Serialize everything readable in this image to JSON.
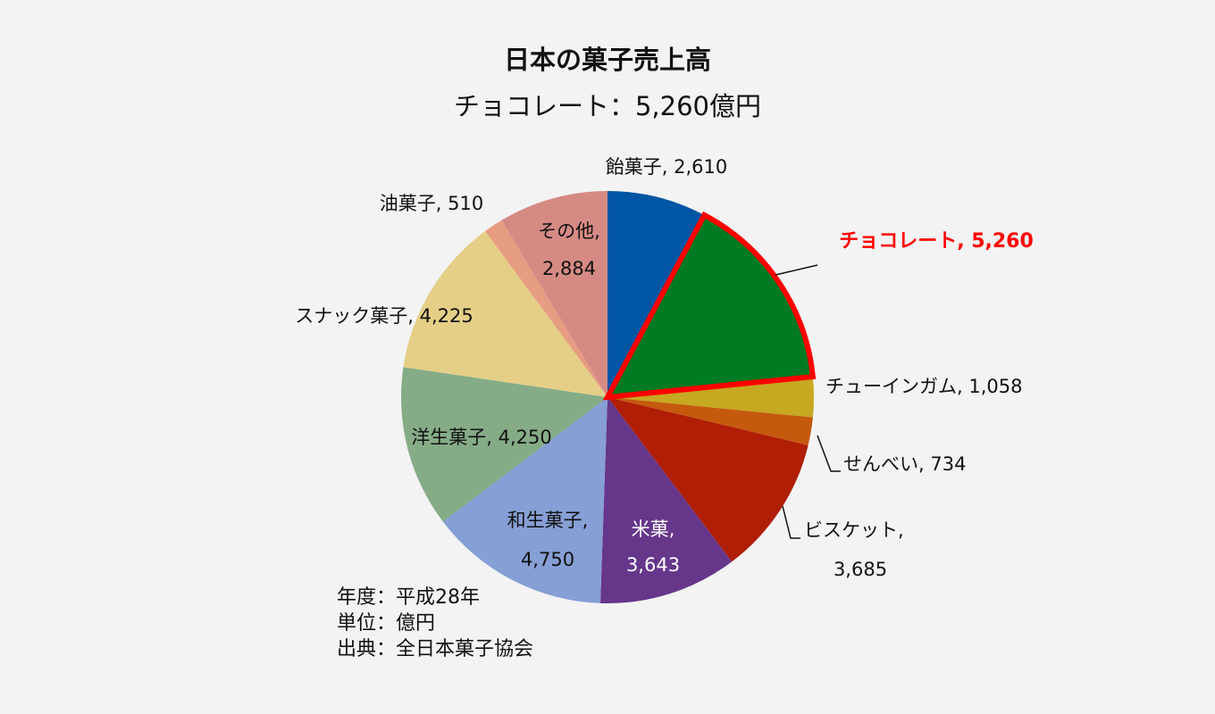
{
  "chart_data": {
    "type": "pie",
    "title": "日本の菓子売上高",
    "subtitle": "チョコレート：5,260億円",
    "slices": [
      {
        "name": "飴菓子",
        "value": 2610,
        "label": "飴菓子, 2,610",
        "color": "#0055a5"
      },
      {
        "name": "チョコレート",
        "value": 5260,
        "label": "チョコレート, 5,260",
        "color": "#007a22",
        "highlight": true,
        "highlight_color": "#ff0000"
      },
      {
        "name": "チューインガム",
        "value": 1058,
        "label": "チューインガム, 1,058",
        "color": "#c6a821"
      },
      {
        "name": "せんべい",
        "value": 734,
        "label": "せんべい, 734",
        "color": "#c55a0e"
      },
      {
        "name": "ビスケット",
        "value": 3685,
        "label": "ビスケット,\n3,685",
        "color": "#b01e05"
      },
      {
        "name": "米菓",
        "value": 3643,
        "label": "米菓,\n3,643",
        "color": "#66368b"
      },
      {
        "name": "和生菓子",
        "value": 4750,
        "label": "和生菓子,\n4,750",
        "color": "#869fd5"
      },
      {
        "name": "洋生菓子",
        "value": 4250,
        "label": "洋生菓子, 4,250",
        "color": "#85ac87"
      },
      {
        "name": "スナック菓子",
        "value": 4225,
        "label": "スナック菓子, 4,225",
        "color": "#e5cf87"
      },
      {
        "name": "油菓子",
        "value": 510,
        "label": "油菓子, 510",
        "color": "#e69d82"
      },
      {
        "name": "その他",
        "value": 2884,
        "label": "その他,\n2,884",
        "color": "#d68a84"
      }
    ],
    "notes": [
      "年度：平成28年",
      "単位：億円",
      "出典：全日本菓子協会"
    ]
  }
}
